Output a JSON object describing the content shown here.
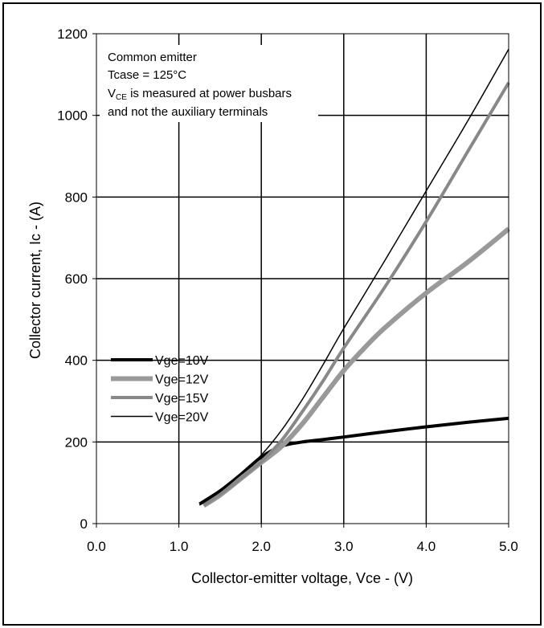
{
  "chart_data": {
    "type": "line",
    "xlabel": "Collector-emitter voltage, Vce - (V)",
    "ylabel": "Collector current, Ic - (A)",
    "xlim": [
      0,
      5
    ],
    "ylim": [
      0,
      1200
    ],
    "x_ticks": [
      "0.0",
      "1.0",
      "2.0",
      "3.0",
      "4.0",
      "5.0"
    ],
    "y_ticks": [
      "0",
      "200",
      "400",
      "600",
      "800",
      "1000",
      "1200"
    ],
    "grid": true,
    "legend_position": "left-middle",
    "annotations": {
      "line1": "Common emitter",
      "line2": "Tcase = 125°C",
      "line3_prefix": "V",
      "line3_sub": "CE",
      "line3_suffix": " is measured at power busbars",
      "line4": "and not the auxiliary terminals"
    },
    "series": [
      {
        "name": "Vge=10V",
        "color": "#000000",
        "width": 4,
        "x": [
          1.25,
          1.5,
          1.75,
          2.0,
          2.25,
          2.5,
          2.75,
          3.0,
          3.5,
          4.0,
          4.5,
          5.0
        ],
        "y": [
          48,
          80,
          120,
          163,
          190,
          200,
          206,
          212,
          225,
          237,
          248,
          258
        ]
      },
      {
        "name": "Vge=12V",
        "color": "#999999",
        "width": 6,
        "x": [
          1.3,
          1.5,
          1.75,
          2.0,
          2.25,
          2.5,
          2.75,
          3.0,
          3.25,
          3.5,
          4.0,
          4.5,
          5.0
        ],
        "y": [
          44,
          70,
          110,
          150,
          190,
          245,
          310,
          375,
          430,
          480,
          565,
          640,
          722
        ]
      },
      {
        "name": "Vge=15V",
        "color": "#888888",
        "width": 4,
        "x": [
          1.3,
          1.5,
          1.75,
          2.0,
          2.25,
          2.5,
          2.75,
          3.0,
          3.5,
          4.0,
          4.5,
          5.0
        ],
        "y": [
          45,
          72,
          110,
          152,
          205,
          275,
          350,
          430,
          580,
          740,
          910,
          1080
        ]
      },
      {
        "name": "Vge=20V",
        "color": "#000000",
        "width": 1.5,
        "x": [
          1.25,
          1.5,
          1.75,
          2.0,
          2.25,
          2.5,
          2.75,
          3.0,
          3.5,
          4.0,
          4.5,
          5.0
        ],
        "y": [
          45,
          78,
          120,
          168,
          230,
          305,
          390,
          478,
          645,
          815,
          985,
          1162
        ]
      }
    ]
  }
}
